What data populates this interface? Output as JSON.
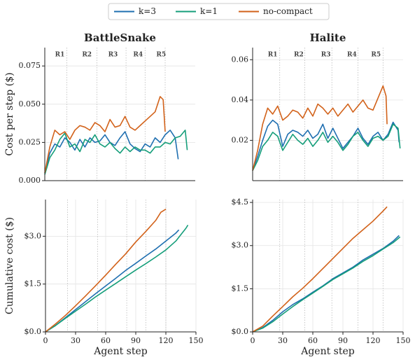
{
  "chart_data": [
    {
      "type": "line",
      "title": "BattleSnake",
      "ylabel": "Cost per step ($)",
      "xlim": [
        0,
        150
      ],
      "ylim": [
        0,
        0.087
      ],
      "yticks": [
        {
          "value": 0,
          "label": "0.000"
        },
        0.025,
        {
          "value": 0.05,
          "label": "0.050"
        },
        0.075
      ],
      "grid": true,
      "round_boundaries": [
        22,
        52,
        81,
        100,
        120
      ],
      "round_labels": [
        {
          "label": "R1",
          "x": 15
        },
        {
          "label": "R2",
          "x": 42
        },
        {
          "label": "R3",
          "x": 68
        },
        {
          "label": "R4",
          "x": 93
        },
        {
          "label": "R5",
          "x": 116
        }
      ],
      "series": [
        {
          "name": "k=3",
          "color": "#1f6fb0",
          "x": [
            0,
            5,
            10,
            15,
            20,
            25,
            30,
            35,
            40,
            45,
            50,
            55,
            60,
            65,
            70,
            75,
            80,
            85,
            90,
            95,
            100,
            105,
            110,
            115,
            120,
            125,
            130,
            133
          ],
          "values": [
            0.005,
            0.018,
            0.024,
            0.022,
            0.028,
            0.025,
            0.02,
            0.027,
            0.022,
            0.028,
            0.025,
            0.026,
            0.03,
            0.025,
            0.023,
            0.028,
            0.032,
            0.024,
            0.021,
            0.019,
            0.024,
            0.022,
            0.028,
            0.025,
            0.03,
            0.033,
            0.028,
            0.014
          ]
        },
        {
          "name": "k=1",
          "color": "#159e7a",
          "x": [
            0,
            5,
            10,
            15,
            20,
            25,
            30,
            35,
            40,
            45,
            50,
            55,
            60,
            65,
            70,
            75,
            80,
            85,
            90,
            95,
            100,
            105,
            110,
            115,
            120,
            125,
            130,
            135,
            140,
            142
          ],
          "values": [
            0.004,
            0.015,
            0.02,
            0.027,
            0.031,
            0.022,
            0.024,
            0.019,
            0.027,
            0.025,
            0.03,
            0.024,
            0.022,
            0.025,
            0.021,
            0.018,
            0.022,
            0.019,
            0.022,
            0.02,
            0.02,
            0.018,
            0.022,
            0.022,
            0.025,
            0.024,
            0.028,
            0.029,
            0.033,
            0.02
          ]
        },
        {
          "name": "no-compact",
          "color": "#d2621a",
          "x": [
            0,
            5,
            10,
            15,
            20,
            25,
            30,
            35,
            40,
            45,
            50,
            55,
            60,
            65,
            70,
            75,
            80,
            85,
            90,
            95,
            100,
            105,
            110,
            115,
            118,
            120
          ],
          "values": [
            0.005,
            0.022,
            0.033,
            0.03,
            0.032,
            0.027,
            0.033,
            0.036,
            0.035,
            0.033,
            0.038,
            0.036,
            0.032,
            0.04,
            0.035,
            0.036,
            0.042,
            0.035,
            0.033,
            0.036,
            0.039,
            0.042,
            0.045,
            0.055,
            0.053,
            0.032
          ]
        }
      ]
    },
    {
      "type": "line",
      "title": "Halite",
      "xlim": [
        0,
        150
      ],
      "ylim": [
        0,
        0.066
      ],
      "yticks": [
        0.02,
        0.04,
        0.06
      ],
      "grid": true,
      "round_boundaries": [
        27,
        52,
        79,
        105,
        130
      ],
      "round_labels": [
        {
          "label": "R1",
          "x": 20
        },
        {
          "label": "R2",
          "x": 46
        },
        {
          "label": "R3",
          "x": 73
        },
        {
          "label": "R4",
          "x": 99
        },
        {
          "label": "R5",
          "x": 123
        }
      ],
      "series": [
        {
          "name": "k=3",
          "color": "#1f6fb0",
          "x": [
            0,
            5,
            10,
            15,
            20,
            25,
            30,
            35,
            40,
            45,
            50,
            55,
            60,
            65,
            70,
            75,
            80,
            85,
            90,
            95,
            100,
            105,
            110,
            115,
            120,
            125,
            130,
            135,
            140,
            145,
            146
          ],
          "values": [
            0.005,
            0.012,
            0.02,
            0.027,
            0.03,
            0.028,
            0.017,
            0.023,
            0.025,
            0.024,
            0.022,
            0.025,
            0.021,
            0.023,
            0.028,
            0.021,
            0.026,
            0.021,
            0.016,
            0.019,
            0.022,
            0.026,
            0.021,
            0.018,
            0.022,
            0.024,
            0.02,
            0.023,
            0.029,
            0.025,
            0.019
          ]
        },
        {
          "name": "k=1",
          "color": "#159e7a",
          "x": [
            0,
            5,
            10,
            15,
            20,
            25,
            30,
            35,
            40,
            45,
            50,
            55,
            60,
            65,
            70,
            75,
            80,
            85,
            90,
            95,
            100,
            105,
            110,
            115,
            120,
            125,
            130,
            135,
            140,
            145,
            147
          ],
          "values": [
            0.005,
            0.01,
            0.017,
            0.02,
            0.024,
            0.022,
            0.015,
            0.019,
            0.023,
            0.02,
            0.018,
            0.021,
            0.017,
            0.02,
            0.024,
            0.019,
            0.022,
            0.019,
            0.015,
            0.018,
            0.022,
            0.024,
            0.02,
            0.017,
            0.021,
            0.022,
            0.02,
            0.022,
            0.028,
            0.026,
            0.016
          ]
        },
        {
          "name": "no-compact",
          "color": "#d2621a",
          "x": [
            0,
            5,
            10,
            15,
            20,
            25,
            30,
            35,
            40,
            45,
            50,
            55,
            60,
            65,
            70,
            75,
            80,
            85,
            90,
            95,
            100,
            105,
            110,
            115,
            120,
            125,
            130,
            133,
            134
          ],
          "values": [
            0.005,
            0.015,
            0.028,
            0.036,
            0.033,
            0.037,
            0.03,
            0.032,
            0.035,
            0.034,
            0.031,
            0.036,
            0.032,
            0.038,
            0.036,
            0.033,
            0.036,
            0.032,
            0.035,
            0.038,
            0.034,
            0.037,
            0.04,
            0.036,
            0.035,
            0.041,
            0.047,
            0.042,
            0.028
          ]
        }
      ]
    },
    {
      "type": "line",
      "ylabel": "Cumulative cost ($)",
      "xlabel": "Agent step",
      "xlim": [
        0,
        150
      ],
      "ylim": [
        0,
        4.15
      ],
      "xticks": [
        0,
        30,
        60,
        90,
        120,
        150
      ],
      "yticks": [
        {
          "value": 0,
          "label": "$0.0"
        },
        {
          "value": 1.5,
          "label": "$1.5"
        },
        {
          "value": 3,
          "label": "$3.0"
        }
      ],
      "grid": true,
      "round_boundaries": [
        22,
        52,
        81,
        100,
        120
      ],
      "series": [
        {
          "name": "k=3",
          "color": "#1f6fb0",
          "x": [
            0,
            10,
            20,
            30,
            40,
            50,
            60,
            70,
            80,
            90,
            100,
            110,
            120,
            130,
            133
          ],
          "values": [
            0,
            0.2,
            0.45,
            0.7,
            0.95,
            1.2,
            1.44,
            1.68,
            1.93,
            2.15,
            2.38,
            2.6,
            2.85,
            3.1,
            3.2
          ]
        },
        {
          "name": "k=1",
          "color": "#159e7a",
          "x": [
            0,
            10,
            20,
            30,
            40,
            50,
            60,
            70,
            80,
            90,
            100,
            110,
            120,
            130,
            140,
            142
          ],
          "values": [
            0,
            0.2,
            0.43,
            0.65,
            0.87,
            1.1,
            1.31,
            1.52,
            1.73,
            1.94,
            2.14,
            2.35,
            2.57,
            2.85,
            3.25,
            3.35
          ]
        },
        {
          "name": "no-compact",
          "color": "#d2621a",
          "x": [
            0,
            10,
            20,
            30,
            40,
            50,
            60,
            70,
            80,
            90,
            100,
            110,
            115,
            120
          ],
          "values": [
            0,
            0.25,
            0.52,
            0.82,
            1.13,
            1.45,
            1.78,
            2.12,
            2.45,
            2.82,
            3.15,
            3.5,
            3.75,
            3.85
          ]
        }
      ]
    },
    {
      "type": "line",
      "xlabel": "Agent step",
      "xlim": [
        0,
        150
      ],
      "ylim": [
        0,
        4.6
      ],
      "xticks": [
        0,
        30,
        60,
        90,
        120,
        150
      ],
      "yticks": [
        {
          "value": 0,
          "label": "$0.0"
        },
        {
          "value": 1.5,
          "label": "$1.5"
        },
        {
          "value": 3,
          "label": "$3.0"
        },
        {
          "value": 4.5,
          "label": "$4.5"
        }
      ],
      "grid": true,
      "round_boundaries": [
        27,
        52,
        79,
        105,
        130
      ],
      "series": [
        {
          "name": "k=3",
          "color": "#1f6fb0",
          "x": [
            0,
            10,
            20,
            30,
            40,
            50,
            60,
            70,
            80,
            90,
            100,
            110,
            120,
            130,
            140,
            146
          ],
          "values": [
            0,
            0.15,
            0.4,
            0.7,
            0.95,
            1.15,
            1.38,
            1.6,
            1.85,
            2.05,
            2.25,
            2.5,
            2.7,
            2.9,
            3.15,
            3.35
          ]
        },
        {
          "name": "k=1",
          "color": "#159e7a",
          "x": [
            0,
            10,
            20,
            30,
            40,
            50,
            60,
            70,
            80,
            90,
            100,
            110,
            120,
            130,
            140,
            147
          ],
          "values": [
            0,
            0.13,
            0.35,
            0.62,
            0.88,
            1.12,
            1.35,
            1.58,
            1.82,
            2.02,
            2.22,
            2.45,
            2.65,
            2.88,
            3.1,
            3.3
          ]
        },
        {
          "name": "no-compact",
          "color": "#d2621a",
          "x": [
            0,
            10,
            20,
            30,
            40,
            50,
            60,
            70,
            80,
            90,
            100,
            110,
            120,
            130,
            134
          ],
          "values": [
            0,
            0.2,
            0.55,
            0.88,
            1.22,
            1.52,
            1.85,
            2.2,
            2.55,
            2.9,
            3.25,
            3.55,
            3.85,
            4.2,
            4.35
          ]
        }
      ]
    }
  ]
}
